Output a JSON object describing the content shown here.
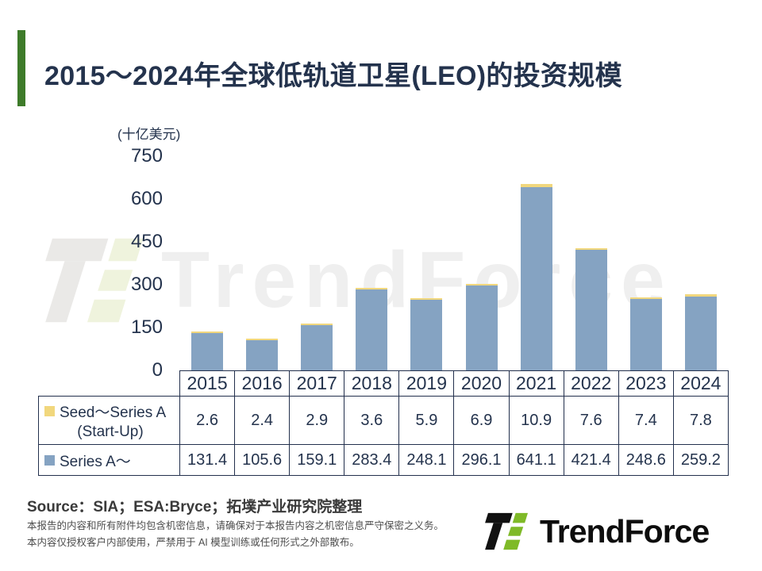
{
  "title": "2015～2024年全球低轨道卫星(LEO)的投资规模",
  "y_axis": {
    "unit": "(十亿美元)",
    "ticks": [
      750,
      600,
      450,
      300,
      150,
      0
    ]
  },
  "chart_data": {
    "type": "bar",
    "stacked": true,
    "title": "2015～2024年全球低轨道卫星(LEO)的投资规模",
    "ylabel": "(十亿美元)",
    "ylim": [
      0,
      750
    ],
    "yticks": [
      750,
      600,
      450,
      300,
      150,
      0
    ],
    "grid": false,
    "legend_position": "table-row-headers",
    "categories": [
      "2015",
      "2016",
      "2017",
      "2018",
      "2019",
      "2020",
      "2021",
      "2022",
      "2023",
      "2024"
    ],
    "series": [
      {
        "name": "Seed～Series A (Start-Up)",
        "color": "#f1d77d",
        "values": [
          2.6,
          2.4,
          2.9,
          3.6,
          5.9,
          6.9,
          10.9,
          7.6,
          7.4,
          7.8
        ]
      },
      {
        "name": "Series A～",
        "color": "#85a3c2",
        "values": [
          131.4,
          105.6,
          159.1,
          283.4,
          248.1,
          296.1,
          641.1,
          421.4,
          248.6,
          259.2
        ]
      }
    ]
  },
  "table": {
    "rows": [
      {
        "label_line1": "Seed～Series A",
        "label_line2": "(Start-Up)",
        "legend_color": "#f1d77d",
        "values": [
          "2.6",
          "2.4",
          "2.9",
          "3.6",
          "5.9",
          "6.9",
          "10.9",
          "7.6",
          "7.4",
          "7.8"
        ]
      },
      {
        "label_line1": "Series A～",
        "label_line2": "",
        "legend_color": "#85a3c2",
        "values": [
          "131.4",
          "105.6",
          "159.1",
          "283.4",
          "248.1",
          "296.1",
          "641.1",
          "421.4",
          "248.6",
          "259.2"
        ]
      }
    ]
  },
  "source": "Source：SIA；ESA:Bryce；拓墣产业研究院整理",
  "disclaimer": {
    "line1": "本报告的内容和所有附件均包含机密信息，请确保对于本报告内容之机密信息严守保密之义务。",
    "line2": "本内容仅授权客户内部使用，严禁用于 AI 模型训练或任何形式之外部散布。"
  },
  "watermark": {
    "text": "TrendForce"
  },
  "logo": {
    "text": "TrendForce"
  },
  "colors": {
    "accent_green": "#3e7b2a",
    "navy_text": "#24334d",
    "table_border": "#23304d",
    "bar_blue": "#85a3c2",
    "bar_yellow": "#f1d77d",
    "logo_green": "#7fba28",
    "logo_black": "#111111",
    "watermark_gray": "#efefef",
    "watermark_green": "#eff3dd"
  }
}
